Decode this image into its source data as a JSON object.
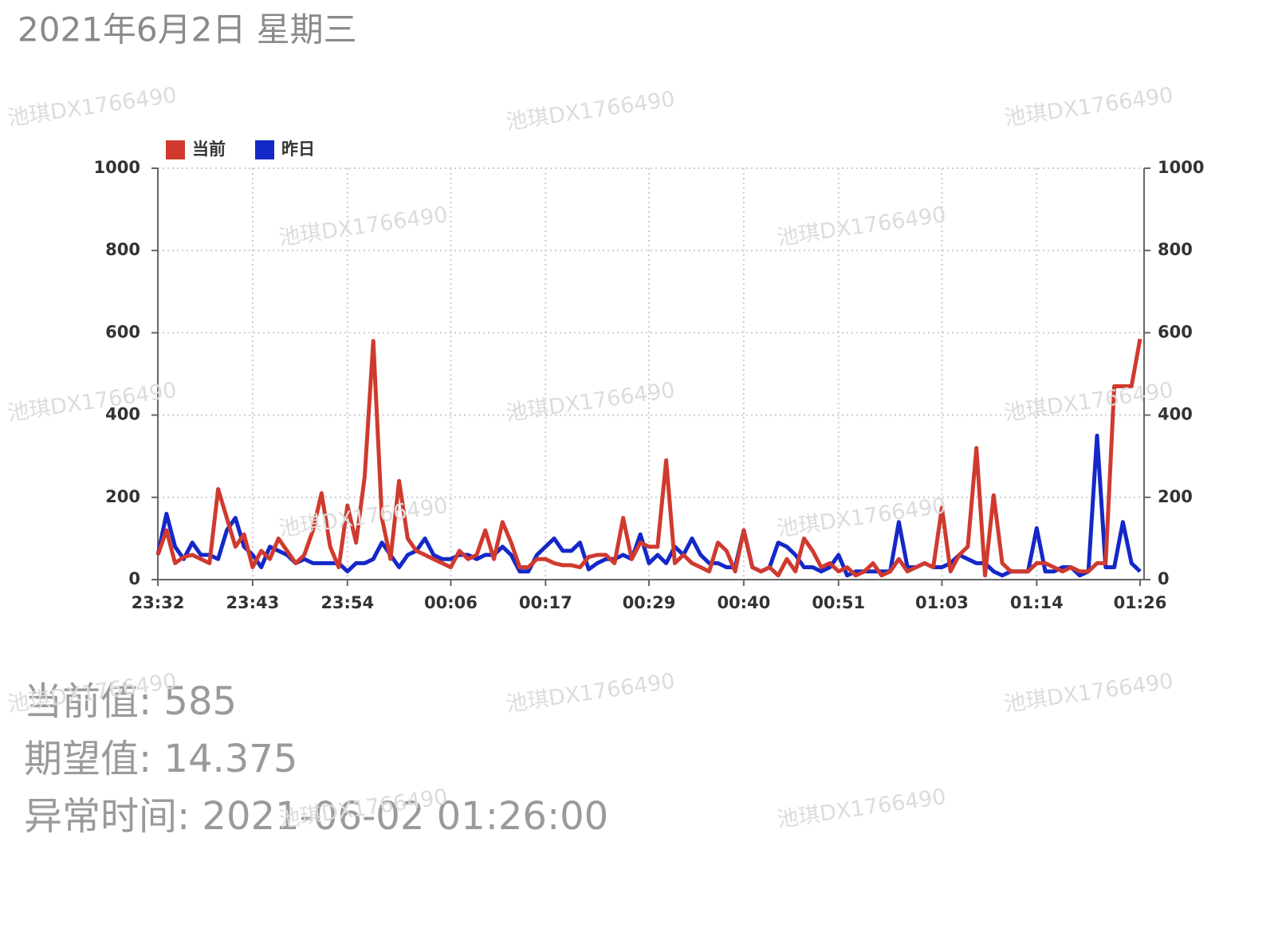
{
  "header": {
    "title": "2021年6月2日 星期三"
  },
  "watermark": "池琪DX1766490",
  "chart_data": {
    "type": "line",
    "categories": [
      "23:32",
      null,
      null,
      null,
      null,
      null,
      null,
      null,
      null,
      null,
      null,
      "23:43",
      null,
      null,
      null,
      null,
      null,
      null,
      null,
      null,
      null,
      null,
      "23:54",
      null,
      null,
      null,
      null,
      null,
      null,
      null,
      null,
      null,
      null,
      null,
      "00:06",
      null,
      null,
      null,
      null,
      null,
      null,
      null,
      null,
      null,
      null,
      "00:17",
      null,
      null,
      null,
      null,
      null,
      null,
      null,
      null,
      null,
      null,
      null,
      "00:29",
      null,
      null,
      null,
      null,
      null,
      null,
      null,
      null,
      null,
      null,
      "00:40",
      null,
      null,
      null,
      null,
      null,
      null,
      null,
      null,
      null,
      null,
      "00:51",
      null,
      null,
      null,
      null,
      null,
      null,
      null,
      null,
      null,
      null,
      null,
      "01:03",
      null,
      null,
      null,
      null,
      null,
      null,
      null,
      null,
      null,
      null,
      "01:14",
      null,
      null,
      null,
      null,
      null,
      null,
      null,
      null,
      null,
      null,
      null,
      "01:26"
    ],
    "series": [
      {
        "name": "当前",
        "color": "#d03a2e",
        "values": [
          60,
          120,
          40,
          55,
          60,
          50,
          40,
          220,
          150,
          80,
          110,
          30,
          70,
          50,
          100,
          70,
          40,
          60,
          120,
          210,
          80,
          30,
          180,
          90,
          250,
          580,
          150,
          50,
          240,
          100,
          70,
          60,
          50,
          40,
          30,
          70,
          50,
          60,
          120,
          50,
          140,
          90,
          30,
          30,
          50,
          50,
          40,
          35,
          35,
          30,
          55,
          60,
          60,
          40,
          150,
          50,
          90,
          80,
          80,
          290,
          40,
          60,
          40,
          30,
          20,
          90,
          70,
          20,
          120,
          30,
          20,
          30,
          10,
          50,
          20,
          100,
          70,
          30,
          40,
          20,
          30,
          10,
          20,
          40,
          10,
          20,
          50,
          20,
          30,
          40,
          30,
          175,
          20,
          60,
          80,
          320,
          10,
          205,
          40,
          20,
          20,
          20,
          40,
          40,
          30,
          20,
          30,
          20,
          20,
          40,
          40,
          470,
          470,
          470,
          585
        ]
      },
      {
        "name": "昨日",
        "color": "#1428c8",
        "values": [
          60,
          160,
          80,
          50,
          90,
          60,
          60,
          50,
          120,
          150,
          80,
          60,
          30,
          80,
          70,
          60,
          40,
          50,
          40,
          40,
          40,
          40,
          20,
          40,
          40,
          50,
          90,
          60,
          30,
          60,
          70,
          100,
          60,
          50,
          50,
          60,
          60,
          50,
          60,
          60,
          80,
          60,
          20,
          20,
          60,
          80,
          100,
          70,
          70,
          90,
          25,
          40,
          50,
          50,
          60,
          50,
          110,
          40,
          60,
          40,
          80,
          60,
          100,
          60,
          40,
          40,
          30,
          30,
          120,
          30,
          20,
          30,
          90,
          80,
          60,
          30,
          30,
          20,
          30,
          60,
          10,
          20,
          20,
          20,
          20,
          20,
          140,
          30,
          30,
          40,
          30,
          30,
          40,
          60,
          50,
          40,
          40,
          20,
          10,
          20,
          20,
          20,
          125,
          20,
          20,
          30,
          30,
          10,
          20,
          350,
          30,
          30,
          140,
          40,
          20
        ]
      }
    ],
    "ylim": [
      0,
      1000
    ],
    "yticks": [
      0,
      200,
      400,
      600,
      800,
      1000
    ],
    "y2lim": [
      0,
      1000
    ],
    "y2ticks": [
      0,
      200,
      400,
      600,
      800,
      1000
    ],
    "grid": true,
    "legend": "top-left"
  },
  "details": [
    "当前值: 585",
    "期望值: 14.375",
    "异常时间: 2021-06-02 01:26:00"
  ]
}
